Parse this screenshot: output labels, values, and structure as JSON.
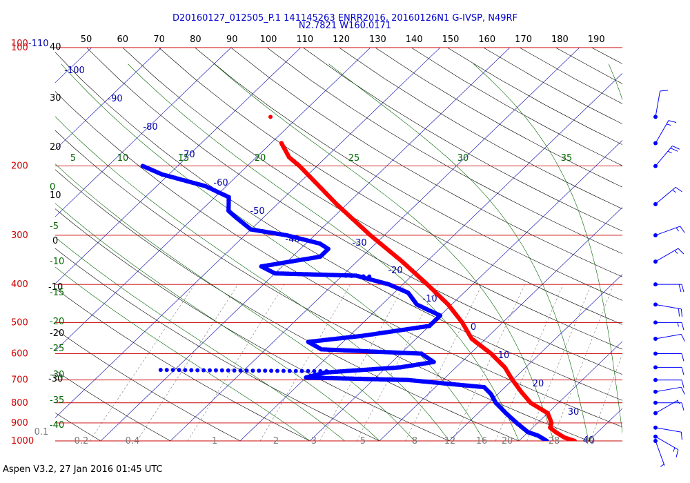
{
  "header": {
    "title_line1": "D20160127_012505_P.1 141145263 ENRR2016, 20160126N1 G-IVSP, N49RF",
    "title_line2": "N2.7821 W160.0171"
  },
  "footer": {
    "text": "Aspen V3.2, 27 Jan 2016  01:45 UTC"
  },
  "colors": {
    "isobar": "#cc0000",
    "isotherm": "#0000aa",
    "dry_adiabat": "#000000",
    "moist_adiabat": "#006600",
    "mixing_ratio": "#7a7a7a",
    "temperature": "#ff0000",
    "dewpoint": "#0000ff",
    "wind_barb": "#0000ff"
  },
  "chart_data": {
    "type": "skew-t",
    "top_temperature_axis": [
      "50",
      "60",
      "70",
      "80",
      "90",
      "100",
      "110",
      "120",
      "130",
      "140",
      "150",
      "160",
      "170",
      "180",
      "190"
    ],
    "pressure_levels": [
      "100",
      "200",
      "300",
      "400",
      "500",
      "600",
      "700",
      "800",
      "900",
      "1000"
    ],
    "top_left_labels": {
      "pressure": "100",
      "isotherm": "-110",
      "dry_adiabat": "40"
    },
    "isotherm_labels": [
      "-100",
      "-90",
      "-80",
      "-70",
      "-60",
      "-50",
      "-40",
      "-30",
      "-20",
      "-10",
      "0",
      "10",
      "20",
      "30",
      "40"
    ],
    "dry_adiabat_labels": [
      "30",
      "20",
      "10",
      "0",
      "-10",
      "-20",
      "-30"
    ],
    "moist_adiabat_labels": [
      "5",
      "10",
      "15",
      "20",
      "25",
      "30",
      "35"
    ],
    "moist_side_labels": [
      "0",
      "-5",
      "-10",
      "-15",
      "-20",
      "-25",
      "-30",
      "-35",
      "-40"
    ],
    "mixing_ratio_labels": [
      "0.1",
      "0.2",
      "0.4",
      "1",
      "2",
      "3",
      "5",
      "8",
      "12",
      "16",
      "20",
      "28",
      "40"
    ],
    "temperature_profile": [
      {
        "p": 1000,
        "t": 28
      },
      {
        "p": 980,
        "t": 26
      },
      {
        "p": 950,
        "t": 24
      },
      {
        "p": 925,
        "t": 22.5
      },
      {
        "p": 900,
        "t": 22
      },
      {
        "p": 850,
        "t": 20
      },
      {
        "p": 800,
        "t": 16
      },
      {
        "p": 750,
        "t": 13
      },
      {
        "p": 700,
        "t": 10
      },
      {
        "p": 650,
        "t": 7
      },
      {
        "p": 600,
        "t": 3
      },
      {
        "p": 550,
        "t": -2
      },
      {
        "p": 500,
        "t": -5.8
      },
      {
        "p": 450,
        "t": -10.5
      },
      {
        "p": 400,
        "t": -16.5
      },
      {
        "p": 350,
        "t": -23.5
      },
      {
        "p": 300,
        "t": -32
      },
      {
        "p": 250,
        "t": -41.5
      },
      {
        "p": 200,
        "t": -52.5
      },
      {
        "p": 190,
        "t": -55.3
      },
      {
        "p": 175,
        "t": -58.5
      }
    ],
    "temperature_isolated_point": {
      "p": 150,
      "t": -64
    },
    "dewpoint_profile": [
      {
        "p": 1000,
        "t": 24
      },
      {
        "p": 970,
        "t": 22
      },
      {
        "p": 950,
        "t": 20
      },
      {
        "p": 900,
        "t": 17
      },
      {
        "p": 850,
        "t": 14
      },
      {
        "p": 800,
        "t": 11
      },
      {
        "p": 760,
        "t": 9
      },
      {
        "p": 730,
        "t": 7
      },
      {
        "p": 700,
        "t": -5
      },
      {
        "p": 690,
        "t": -20
      },
      {
        "p": 670,
        "t": -18
      },
      {
        "p": 650,
        "t": -8
      },
      {
        "p": 630,
        "t": -4
      },
      {
        "p": 600,
        "t": -7
      },
      {
        "p": 585,
        "t": -22
      },
      {
        "p": 560,
        "t": -25
      },
      {
        "p": 540,
        "t": -18
      },
      {
        "p": 510,
        "t": -10
      },
      {
        "p": 480,
        "t": -10
      },
      {
        "p": 450,
        "t": -15
      },
      {
        "p": 420,
        "t": -18
      },
      {
        "p": 400,
        "t": -22
      },
      {
        "p": 380,
        "t": -28
      },
      {
        "p": 375,
        "t": -40
      },
      {
        "p": 360,
        "t": -43
      },
      {
        "p": 340,
        "t": -36
      },
      {
        "p": 325,
        "t": -36
      },
      {
        "p": 315,
        "t": -38
      },
      {
        "p": 300,
        "t": -44
      },
      {
        "p": 290,
        "t": -50
      },
      {
        "p": 270,
        "t": -54
      },
      {
        "p": 260,
        "t": -56
      },
      {
        "p": 240,
        "t": -58
      },
      {
        "p": 225,
        "t": -63
      },
      {
        "p": 210,
        "t": -71
      },
      {
        "p": 200,
        "t": -75
      }
    ],
    "dewpoint_dotted_segments": [
      [
        {
          "p": 660,
          "t": -42
        },
        {
          "p": 665,
          "t": -18
        }
      ],
      [
        {
          "p": 375,
          "t": -39
        },
        {
          "p": 382,
          "t": -26
        }
      ]
    ],
    "wind_profile": [
      {
        "p": 1000,
        "speed_kt": 5,
        "dir": 160
      },
      {
        "p": 975,
        "speed_kt": 15,
        "dir": 120
      },
      {
        "p": 925,
        "speed_kt": 10,
        "dir": 100
      },
      {
        "p": 850,
        "speed_kt": 5,
        "dir": 60
      },
      {
        "p": 800,
        "speed_kt": 10,
        "dir": 90
      },
      {
        "p": 750,
        "speed_kt": 10,
        "dir": 80
      },
      {
        "p": 700,
        "speed_kt": 10,
        "dir": 90
      },
      {
        "p": 650,
        "speed_kt": 10,
        "dir": 90
      },
      {
        "p": 600,
        "speed_kt": 10,
        "dir": 90
      },
      {
        "p": 550,
        "speed_kt": 10,
        "dir": 80
      },
      {
        "p": 500,
        "speed_kt": 15,
        "dir": 90
      },
      {
        "p": 450,
        "speed_kt": 20,
        "dir": 100
      },
      {
        "p": 400,
        "speed_kt": 20,
        "dir": 90
      },
      {
        "p": 350,
        "speed_kt": 15,
        "dir": 60
      },
      {
        "p": 300,
        "speed_kt": 15,
        "dir": 70
      },
      {
        "p": 250,
        "speed_kt": 15,
        "dir": 50
      },
      {
        "p": 200,
        "speed_kt": 25,
        "dir": 40
      },
      {
        "p": 175,
        "speed_kt": 15,
        "dir": 30
      },
      {
        "p": 150,
        "speed_kt": 10,
        "dir": 10
      }
    ]
  }
}
